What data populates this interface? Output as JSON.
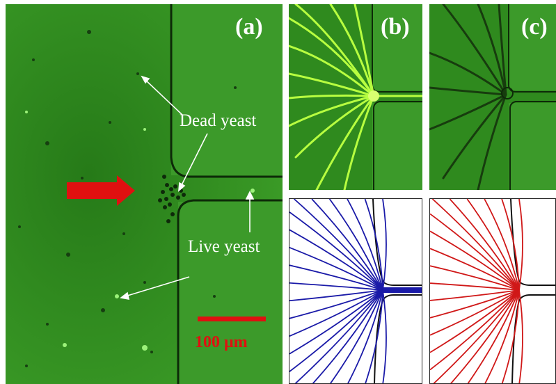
{
  "panels": {
    "a": {
      "label": "(a)"
    },
    "b": {
      "label": "(b)"
    },
    "c": {
      "label": "(c)"
    }
  },
  "annotations": {
    "dead_yeast": "Dead yeast",
    "live_yeast": "Live yeast"
  },
  "scale_bar": {
    "text": "100 μm",
    "color": "#e01010"
  },
  "colors": {
    "micrograph_green": "#2f8f1f",
    "flow_arrow": "#e01010",
    "sim_blue_lines": "#1a1aa8",
    "sim_red_lines": "#d01818",
    "fluorescent_streaks": "#b8ff40"
  }
}
